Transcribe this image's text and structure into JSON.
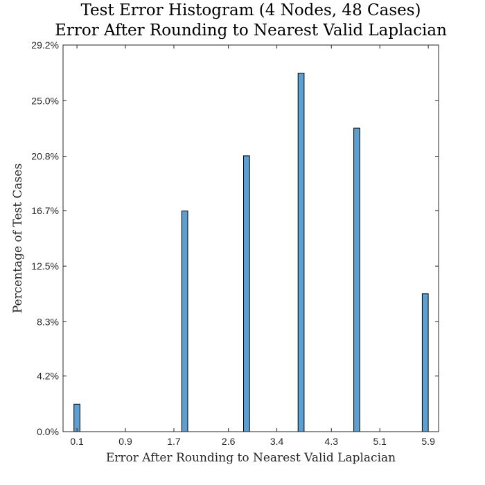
{
  "chart_data": {
    "type": "bar",
    "title": "Test Error Histogram (4 Nodes, 48 Cases)",
    "subtitle": "Error After Rounding to Nearest Valid Laplacian",
    "xlabel": "Error After Rounding to Nearest Valid Laplacian",
    "ylabel": "Percentage of Test Cases",
    "xlim": [
      -0.13,
      6.07
    ],
    "ylim": [
      0,
      29.2
    ],
    "x_ticks": [
      0.1,
      0.9,
      1.7,
      2.6,
      3.4,
      4.3,
      5.1,
      5.9
    ],
    "x_tick_labels": [
      "0.1",
      "0.9",
      "1.7",
      "2.6",
      "3.4",
      "4.3",
      "5.1",
      "5.9"
    ],
    "y_ticks": [
      0,
      4.2,
      8.3,
      12.5,
      16.7,
      20.8,
      25.0,
      29.2
    ],
    "y_tick_labels": [
      "0.0%",
      "4.2%",
      "8.3%",
      "12.5%",
      "16.7%",
      "20.8%",
      "25.0%",
      "29.2%"
    ],
    "bar_width": 0.1,
    "bars": [
      {
        "x": 0.1,
        "value": 2.08
      },
      {
        "x": 1.88,
        "value": 16.67
      },
      {
        "x": 2.9,
        "value": 20.83
      },
      {
        "x": 3.8,
        "value": 27.08
      },
      {
        "x": 4.72,
        "value": 22.92
      },
      {
        "x": 5.85,
        "value": 10.42
      }
    ],
    "grid": false,
    "legend": "none",
    "colors": {
      "bar_fill": "#5b9fd3",
      "bar_edge": "#000000"
    }
  }
}
